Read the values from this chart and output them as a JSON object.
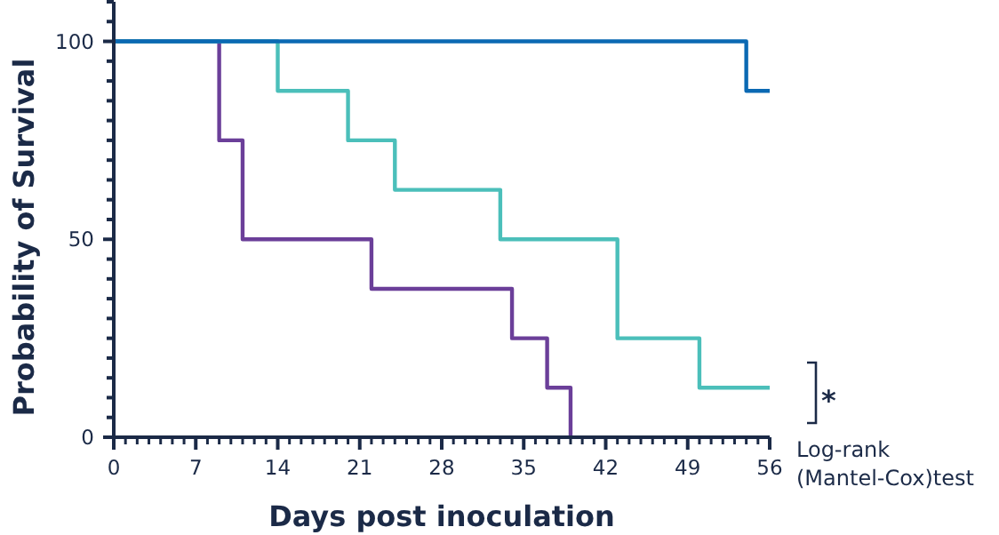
{
  "chart_data": {
    "type": "step",
    "xlabel": "Days post inoculation",
    "ylabel": "Probability of Survival",
    "series": [
      {
        "color": "#6b3f99",
        "x": [
          0,
          9,
          11,
          22,
          34,
          37,
          39
        ],
        "values": [
          100,
          75,
          50,
          37.5,
          25,
          12.5,
          0
        ]
      },
      {
        "color": "#4bbfba",
        "x": [
          0,
          14,
          20,
          24,
          33,
          43,
          50,
          56
        ],
        "values": [
          100,
          87.5,
          75,
          62.5,
          50,
          25,
          12.5,
          12.5
        ]
      },
      {
        "color": "#0b69b3",
        "x": [
          0,
          54,
          56
        ],
        "values": [
          100,
          87.5,
          87.5
        ]
      }
    ],
    "xlim": [
      0,
      56
    ],
    "ylim": [
      0,
      110
    ],
    "xticks": [
      0,
      {
        "value": 1,
        "label": null
      },
      {
        "value": 2,
        "label": null
      },
      {
        "value": 3,
        "label": null
      },
      {
        "value": 4,
        "label": null
      },
      {
        "value": 5,
        "label": null
      },
      {
        "value": 6,
        "label": null
      },
      7,
      {
        "value": 8,
        "label": null
      },
      {
        "value": 9,
        "label": null
      },
      {
        "value": 10,
        "label": null
      },
      {
        "value": 11,
        "label": null
      },
      {
        "value": 12,
        "label": null
      },
      {
        "value": 13,
        "label": null
      },
      14,
      {
        "value": 15,
        "label": null
      },
      {
        "value": 16,
        "label": null
      },
      {
        "value": 17,
        "label": null
      },
      {
        "value": 18,
        "label": null
      },
      {
        "value": 19,
        "label": null
      },
      {
        "value": 20,
        "label": null
      },
      21,
      {
        "value": 22,
        "label": null
      },
      {
        "value": 23,
        "label": null
      },
      {
        "value": 24,
        "label": null
      },
      {
        "value": 25,
        "label": null
      },
      {
        "value": 26,
        "label": null
      },
      {
        "value": 27,
        "label": null
      },
      28,
      {
        "value": 29,
        "label": null
      },
      {
        "value": 30,
        "label": null
      },
      {
        "value": 31,
        "label": null
      },
      {
        "value": 32,
        "label": null
      },
      {
        "value": 33,
        "label": null
      },
      {
        "value": 34,
        "label": null
      },
      35,
      {
        "value": 36,
        "label": null
      },
      {
        "value": 37,
        "label": null
      },
      {
        "value": 38,
        "label": null
      },
      {
        "value": 39,
        "label": null
      },
      {
        "value": 40,
        "label": null
      },
      {
        "value": 41,
        "label": null
      },
      42,
      {
        "value": 43,
        "label": null
      },
      {
        "value": 44,
        "label": null
      },
      {
        "value": 45,
        "label": null
      },
      {
        "value": 46,
        "label": null
      },
      {
        "value": 47,
        "label": null
      },
      {
        "value": 48,
        "label": null
      },
      49,
      {
        "value": 50,
        "label": null
      },
      {
        "value": 51,
        "label": null
      },
      {
        "value": 52,
        "label": null
      },
      {
        "value": 53,
        "label": null
      },
      {
        "value": 54,
        "label": null
      },
      {
        "value": 55,
        "label": null
      },
      56
    ],
    "yticks": [
      0,
      {
        "value": 5,
        "label": null
      },
      {
        "value": 10,
        "label": null
      },
      {
        "value": 15,
        "label": null
      },
      {
        "value": 20,
        "label": null
      },
      {
        "value": 25,
        "label": null
      },
      {
        "value": 30,
        "label": null
      },
      {
        "value": 35,
        "label": null
      },
      {
        "value": 40,
        "label": null
      },
      {
        "value": 45,
        "label": null
      },
      50,
      {
        "value": 55,
        "label": null
      },
      {
        "value": 60,
        "label": null
      },
      {
        "value": 65,
        "label": null
      },
      {
        "value": 70,
        "label": null
      },
      {
        "value": 75,
        "label": null
      },
      {
        "value": 80,
        "label": null
      },
      {
        "value": 85,
        "label": null
      },
      {
        "value": 90,
        "label": null
      },
      {
        "value": 95,
        "label": null
      },
      100,
      {
        "value": 105,
        "label": null
      },
      {
        "value": 110,
        "label": null
      }
    ],
    "grid": false,
    "line_style": "solid",
    "annotations": [
      "*",
      "Log-rank\n(Mantel-Cox)test"
    ]
  }
}
